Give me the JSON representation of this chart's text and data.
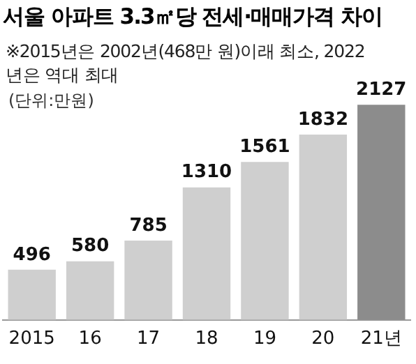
{
  "chart_data": {
    "type": "bar",
    "title": "서울 아파트 3.3㎡당 전세·매매가격 차이",
    "subtitle": "※2015년은 2002년(468만 원)이래 최소, 2022년은 역대 최대",
    "annotations": [
      "(단위:만원)"
    ],
    "categories": [
      "2015",
      "16",
      "17",
      "18",
      "19",
      "20",
      "21년"
    ],
    "values": [
      496,
      580,
      785,
      1310,
      1561,
      1832,
      2127
    ],
    "colors": [
      "#cfcfcf",
      "#cfcfcf",
      "#cfcfcf",
      "#cfcfcf",
      "#cfcfcf",
      "#cfcfcf",
      "#8c8c8c"
    ],
    "data_labels": true,
    "grid": false,
    "legend": false,
    "tick_labels": "x"
  }
}
